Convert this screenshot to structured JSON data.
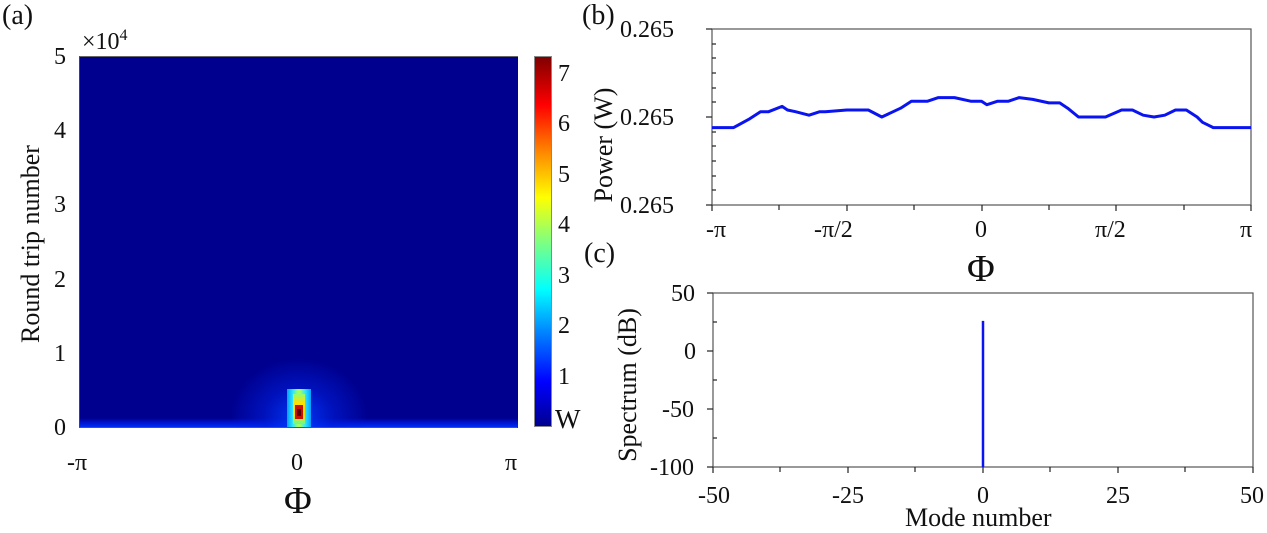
{
  "panels": {
    "a": {
      "label": "(a)"
    },
    "b": {
      "label": "(b)"
    },
    "c": {
      "label": "(c)"
    }
  },
  "chart_data": [
    {
      "id": "a",
      "type": "heatmap",
      "title": "",
      "xlabel": "Φ",
      "ylabel": "Round trip number",
      "y_multiplier": "×10",
      "y_multiplier_exp": "4",
      "xticks": [
        "-π",
        "0",
        "π"
      ],
      "xlim": [
        "-π",
        "π"
      ],
      "yticks": [
        "0",
        "1",
        "2",
        "3",
        "4",
        "5"
      ],
      "ylim": [
        0,
        50000
      ],
      "colormap": "jet",
      "colorbar": {
        "ticks": [
          "1",
          "2",
          "3",
          "4",
          "5",
          "6",
          "7"
        ],
        "unit": "W",
        "range": [
          0,
          7.3
        ]
      },
      "description": "Field is near zero everywhere except a narrow localized pulse at Φ≈0 during early round trips (≈0–5000), peaking ≈7.3 W around round trip ≈2000; weak low-level band across all Φ near round trip 0."
    },
    {
      "id": "b",
      "type": "line",
      "title": "",
      "xlabel": "Φ",
      "ylabel": "Power (W)",
      "xticks": [
        "-π",
        "-π/2",
        "0",
        "π/2",
        "π"
      ],
      "yticks": [
        "0.265",
        "0.265",
        "0.265"
      ],
      "ylim_normalized": [
        0,
        1
      ],
      "series": [
        {
          "name": "Power",
          "color": "#0a14f0",
          "x_normalized": [
            0.0,
            0.04,
            0.07,
            0.09,
            0.105,
            0.13,
            0.14,
            0.155,
            0.18,
            0.2,
            0.21,
            0.25,
            0.29,
            0.315,
            0.35,
            0.37,
            0.4,
            0.42,
            0.45,
            0.48,
            0.5,
            0.51,
            0.53,
            0.55,
            0.57,
            0.595,
            0.625,
            0.645,
            0.66,
            0.68,
            0.7,
            0.73,
            0.76,
            0.78,
            0.8,
            0.82,
            0.84,
            0.86,
            0.88,
            0.9,
            0.91,
            0.93,
            0.95,
            0.98,
            1.0
          ],
          "y_normalized": [
            0.44,
            0.44,
            0.49,
            0.53,
            0.53,
            0.56,
            0.54,
            0.53,
            0.51,
            0.53,
            0.53,
            0.54,
            0.54,
            0.5,
            0.55,
            0.59,
            0.59,
            0.61,
            0.61,
            0.59,
            0.59,
            0.57,
            0.59,
            0.59,
            0.61,
            0.6,
            0.58,
            0.58,
            0.55,
            0.5,
            0.5,
            0.5,
            0.54,
            0.54,
            0.51,
            0.5,
            0.51,
            0.54,
            0.54,
            0.5,
            0.47,
            0.44,
            0.44,
            0.44,
            0.44
          ]
        }
      ]
    },
    {
      "id": "c",
      "type": "bar",
      "title": "",
      "xlabel": "Mode number",
      "ylabel": "Spectrum (dB)",
      "xticks": [
        "-50",
        "-25",
        "0",
        "25",
        "50"
      ],
      "xlim": [
        -50,
        50
      ],
      "yticks": [
        "50",
        "0",
        "-50",
        "-100"
      ],
      "ylim": [
        -100,
        50
      ],
      "series": [
        {
          "name": "Spectrum",
          "color": "#0a14f0",
          "x": [
            0
          ],
          "values": [
            26
          ]
        }
      ]
    }
  ]
}
